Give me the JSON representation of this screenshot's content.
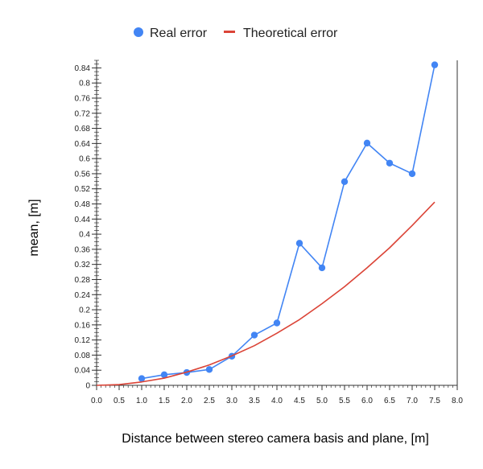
{
  "chart_data": {
    "type": "line",
    "xlabel": "Distance between stereo camera basis and plane, [m]",
    "ylabel": "mean, [m]",
    "xlim": [
      0,
      8
    ],
    "ylim": [
      0,
      0.86
    ],
    "x_ticks": [
      "0.0",
      "0.5",
      "1.0",
      "1.5",
      "2.0",
      "2.5",
      "3.0",
      "3.5",
      "4.0",
      "4.5",
      "5.0",
      "5.5",
      "6.0",
      "6.5",
      "7.0",
      "7.5",
      "8.0"
    ],
    "y_ticks": [
      "0",
      "0.04",
      "0.08",
      "0.12",
      "0.16",
      "0.2",
      "0.24",
      "0.28",
      "0.32",
      "0.36",
      "0.4",
      "0.44",
      "0.48",
      "0.52",
      "0.56",
      "0.6",
      "0.64",
      "0.68",
      "0.72",
      "0.76",
      "0.8",
      "0.84"
    ],
    "legend_position": "top",
    "series": [
      {
        "name": "Real error",
        "color": "#4285f4",
        "markers": true,
        "x": [
          1.0,
          1.5,
          2.0,
          2.5,
          3.0,
          3.5,
          4.0,
          4.5,
          5.0,
          5.5,
          6.0,
          6.5,
          7.0,
          7.5
        ],
        "y": [
          0.018,
          0.028,
          0.034,
          0.042,
          0.077,
          0.133,
          0.165,
          0.376,
          0.311,
          0.539,
          0.641,
          0.588,
          0.56,
          0.848
        ]
      },
      {
        "name": "Theoretical error",
        "color": "#db4437",
        "markers": false,
        "x": [
          0.0,
          0.5,
          1.0,
          1.5,
          2.0,
          2.5,
          3.0,
          3.5,
          4.0,
          4.5,
          5.0,
          5.5,
          6.0,
          6.5,
          7.0,
          7.5
        ],
        "y": [
          0.0,
          0.002,
          0.009,
          0.019,
          0.035,
          0.054,
          0.078,
          0.105,
          0.138,
          0.174,
          0.216,
          0.261,
          0.311,
          0.364,
          0.423,
          0.485
        ]
      }
    ]
  }
}
